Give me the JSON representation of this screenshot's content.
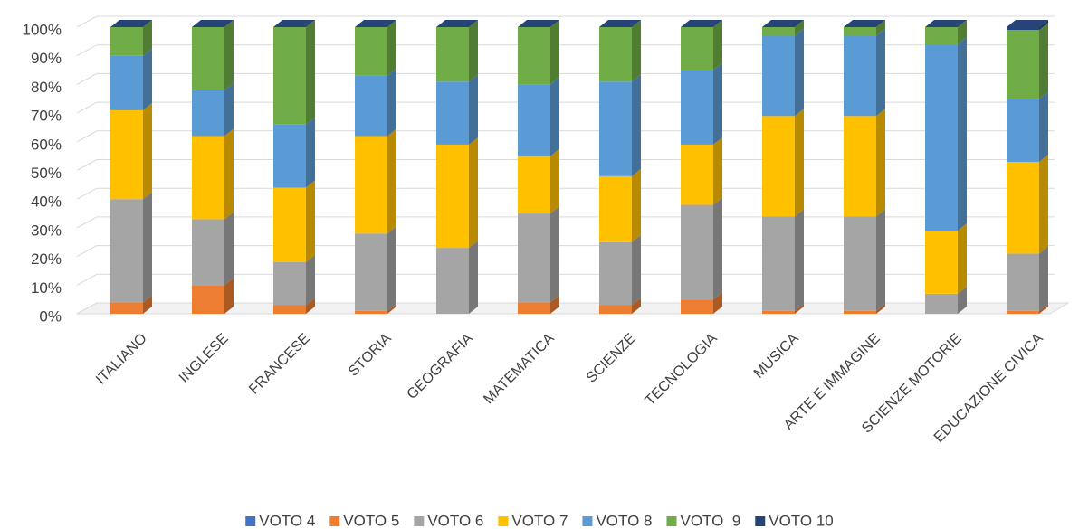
{
  "chart_data": {
    "type": "bar",
    "stacked": true,
    "categories": [
      "ITALIANO",
      "INGLESE",
      "FRANCESE",
      "STORIA",
      "GEOGRAFIA",
      "MATEMATICA",
      "SCIENZE",
      "TECNOLOGIA",
      "MUSICA",
      "ARTE E IMMAGINE",
      "SCIENZE MOTORIE",
      "EDUCAZIONE CIVICA"
    ],
    "series": [
      {
        "name": "VOTO 4",
        "color": "#4472c4",
        "values": [
          0,
          0,
          0,
          0,
          0,
          0,
          0,
          0,
          0,
          0,
          0,
          0
        ]
      },
      {
        "name": "VOTO 5",
        "color": "#ed7d31",
        "values": [
          4,
          10,
          3,
          1,
          0,
          4,
          3,
          5,
          1,
          1,
          0,
          1
        ]
      },
      {
        "name": "VOTO 6",
        "color": "#a5a5a5",
        "values": [
          36,
          23,
          15,
          27,
          23,
          31,
          22,
          33,
          33,
          33,
          7,
          20
        ]
      },
      {
        "name": "VOTO 7",
        "color": "#ffc000",
        "values": [
          31,
          29,
          26,
          34,
          36,
          20,
          23,
          21,
          35,
          35,
          22,
          32
        ]
      },
      {
        "name": "VOTO 8",
        "color": "#5b9bd5",
        "values": [
          19,
          16,
          22,
          21,
          22,
          25,
          33,
          26,
          28,
          28,
          65,
          22
        ]
      },
      {
        "name": "VOTO  9",
        "color": "#70ad47",
        "values": [
          10,
          22,
          34,
          17,
          19,
          20,
          19,
          15,
          3,
          3,
          6,
          24
        ]
      },
      {
        "name": "VOTO 10",
        "color": "#264478",
        "values": [
          0,
          0,
          0,
          0,
          0,
          0,
          0,
          0,
          0,
          0,
          0,
          1
        ]
      }
    ],
    "ylim": [
      0,
      100
    ],
    "yticks": [
      {
        "value": 0,
        "label": "0%"
      },
      {
        "value": 10,
        "label": "10%"
      },
      {
        "value": 20,
        "label": "20%"
      },
      {
        "value": 30,
        "label": "30%"
      },
      {
        "value": 40,
        "label": "40%"
      },
      {
        "value": 50,
        "label": "50%"
      },
      {
        "value": 60,
        "label": "60%"
      },
      {
        "value": 70,
        "label": "70%"
      },
      {
        "value": 80,
        "label": "80%"
      },
      {
        "value": 90,
        "label": "90%"
      },
      {
        "value": 100,
        "label": "100%"
      }
    ],
    "grid": true,
    "legend": "bottom"
  }
}
